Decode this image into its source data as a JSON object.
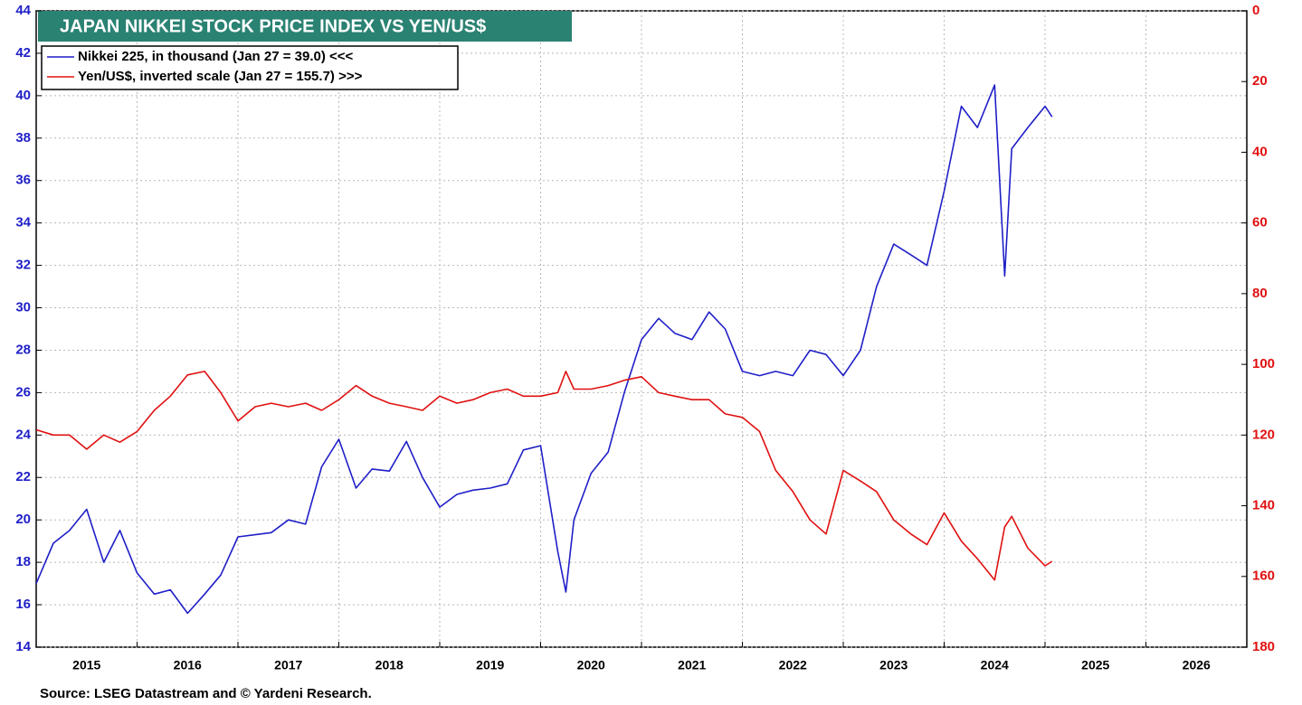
{
  "chart_data": {
    "type": "line",
    "title": "JAPAN NIKKEI STOCK PRICE INDEX VS YEN/US$",
    "source": "Source: LSEG Datastream and © Yardeni Research.",
    "xlim": [
      2015,
      2027
    ],
    "xticks": [
      2015,
      2016,
      2017,
      2018,
      2019,
      2020,
      2021,
      2022,
      2023,
      2024,
      2025,
      2026
    ],
    "ylim": [
      14,
      44
    ],
    "yticks": [
      14,
      16,
      18,
      20,
      22,
      24,
      26,
      28,
      30,
      32,
      34,
      36,
      38,
      40,
      42,
      44
    ],
    "y2lim": [
      180,
      0
    ],
    "y2ticks": [
      0,
      20,
      40,
      60,
      80,
      100,
      120,
      140,
      160,
      180
    ],
    "grid": true,
    "legend": "upper left",
    "x": [
      2015.0,
      2015.17,
      2015.33,
      2015.5,
      2015.67,
      2015.83,
      2016.0,
      2016.17,
      2016.33,
      2016.5,
      2016.67,
      2016.83,
      2017.0,
      2017.17,
      2017.33,
      2017.5,
      2017.67,
      2017.83,
      2018.0,
      2018.17,
      2018.33,
      2018.5,
      2018.67,
      2018.83,
      2019.0,
      2019.17,
      2019.33,
      2019.5,
      2019.67,
      2019.83,
      2020.0,
      2020.17,
      2020.25,
      2020.33,
      2020.5,
      2020.67,
      2020.83,
      2021.0,
      2021.17,
      2021.33,
      2021.5,
      2021.67,
      2021.83,
      2022.0,
      2022.17,
      2022.33,
      2022.5,
      2022.67,
      2022.83,
      2023.0,
      2023.17,
      2023.33,
      2023.5,
      2023.67,
      2023.83,
      2024.0,
      2024.17,
      2024.33,
      2024.5,
      2024.6,
      2024.67,
      2024.83,
      2025.0,
      2025.07
    ],
    "series": [
      {
        "name": "Nikkei 225, in thousand (Jan 27 = 39.0) <<<",
        "color": "#1f1fc8",
        "axis": "y",
        "values": [
          17.0,
          18.9,
          19.5,
          20.5,
          18.0,
          19.5,
          17.5,
          16.5,
          16.7,
          15.6,
          16.5,
          17.4,
          19.2,
          19.3,
          19.4,
          20.0,
          19.8,
          22.5,
          23.8,
          21.5,
          22.4,
          22.3,
          23.7,
          22.0,
          20.6,
          21.2,
          21.4,
          21.5,
          21.7,
          23.3,
          23.5,
          18.5,
          16.6,
          20.0,
          22.2,
          23.2,
          26.0,
          28.5,
          29.5,
          28.8,
          28.5,
          29.8,
          29.0,
          27.0,
          26.8,
          27.0,
          26.8,
          28.0,
          27.8,
          26.8,
          28.0,
          31.0,
          33.0,
          32.5,
          32.0,
          35.5,
          39.5,
          38.5,
          40.5,
          31.5,
          37.5,
          38.5,
          39.5,
          39.0
        ]
      },
      {
        "name": "Yen/US$, inverted scale (Jan 27 = 155.7) >>>",
        "color": "#e01010",
        "axis": "y2",
        "values": [
          118.5,
          120,
          120,
          124,
          120,
          122,
          119,
          113,
          109,
          103,
          102,
          108,
          116,
          112,
          111,
          112,
          111,
          113,
          110,
          106,
          109,
          111,
          112,
          113,
          109,
          111,
          110,
          108,
          107,
          109,
          109,
          108,
          102,
          107,
          107,
          106,
          104.5,
          103.5,
          108,
          109,
          110,
          110,
          114,
          115,
          119,
          130,
          136,
          144,
          148,
          130,
          133,
          136,
          144,
          148,
          151,
          142,
          150,
          155,
          161,
          146,
          143,
          152,
          157,
          155.7
        ]
      }
    ]
  }
}
